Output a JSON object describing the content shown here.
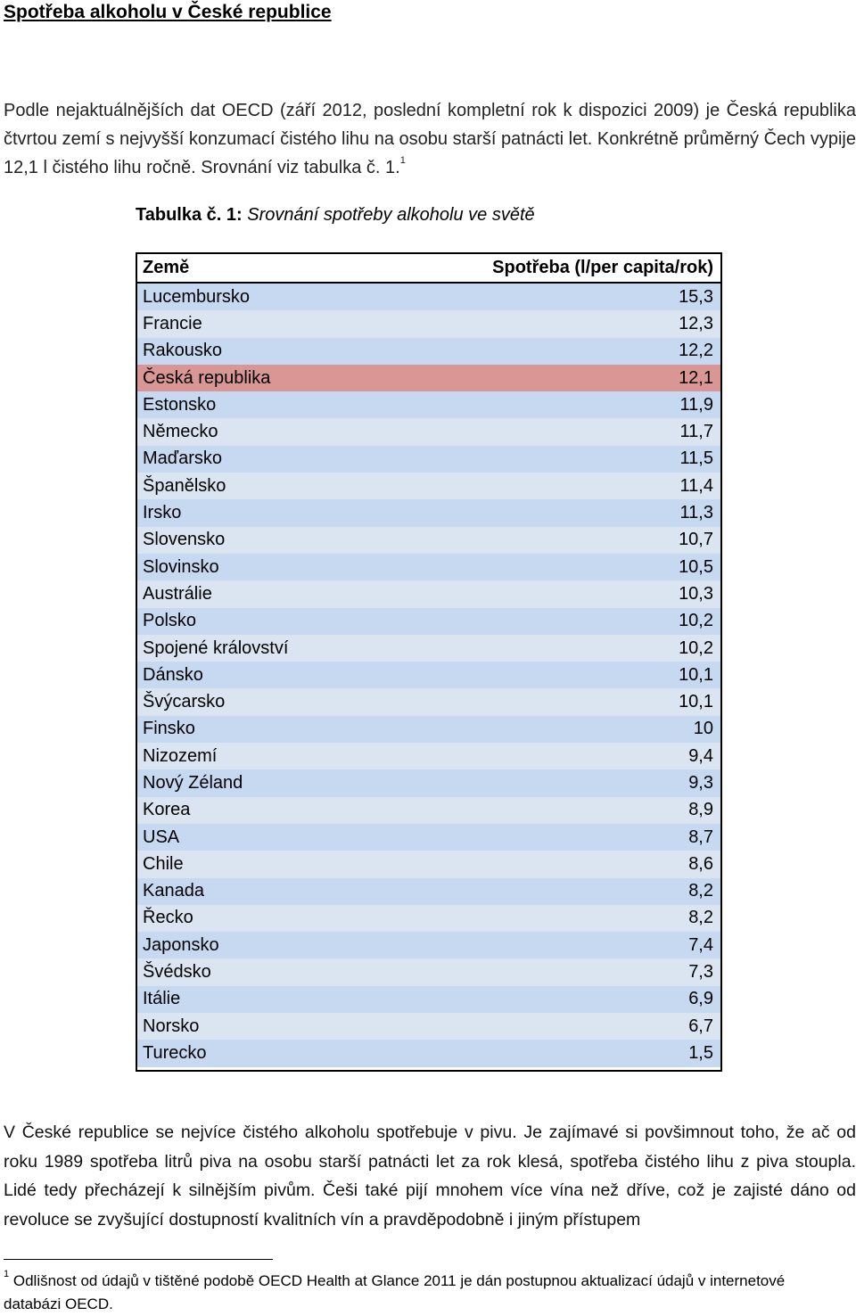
{
  "heading": "Spotřeba alkoholu v České republice",
  "intro": {
    "text": "Podle nejaktuálnějších dat OECD (září 2012, poslední kompletní rok k dispozici 2009) je Česká republika čtvrtou zemí s nejvyšší konzumací čistého lihu na osobu starší patnácti let. Konkrétně průměrný Čech vypije 12,1 l čistého lihu ročně. Srovnání viz tabulka č. 1.",
    "footnote_ref": "1"
  },
  "caption": {
    "label": "Tabulka č. 1:",
    "text": "Srovnání spotřeby alkoholu ve světě"
  },
  "table": {
    "col_country": "Země",
    "col_value": "Spotřeba (l/per capita/rok)",
    "rows": [
      {
        "country": "Lucembursko",
        "value": "15,3"
      },
      {
        "country": "Francie",
        "value": "12,3"
      },
      {
        "country": "Rakousko",
        "value": "12,2"
      },
      {
        "country": "Česká republika",
        "value": "12,1"
      },
      {
        "country": "Estonsko",
        "value": "11,9"
      },
      {
        "country": "Německo",
        "value": "11,7"
      },
      {
        "country": "Maďarsko",
        "value": "11,5"
      },
      {
        "country": "Španělsko",
        "value": "11,4"
      },
      {
        "country": "Irsko",
        "value": "11,3"
      },
      {
        "country": "Slovensko",
        "value": "10,7"
      },
      {
        "country": "Slovinsko",
        "value": "10,5"
      },
      {
        "country": "Austrálie",
        "value": "10,3"
      },
      {
        "country": "Polsko",
        "value": "10,2"
      },
      {
        "country": "Spojené království",
        "value": "10,2"
      },
      {
        "country": "Dánsko",
        "value": "10,1"
      },
      {
        "country": "Švýcarsko",
        "value": "10,1"
      },
      {
        "country": "Finsko",
        "value": "10"
      },
      {
        "country": "Nizozemí",
        "value": "9,4"
      },
      {
        "country": "Nový Zéland",
        "value": "9,3"
      },
      {
        "country": "Korea",
        "value": "8,9"
      },
      {
        "country": "USA",
        "value": "8,7"
      },
      {
        "country": "Chile",
        "value": "8,6"
      },
      {
        "country": "Kanada",
        "value": "8,2"
      },
      {
        "country": "Řecko",
        "value": "8,2"
      },
      {
        "country": "Japonsko",
        "value": "7,4"
      },
      {
        "country": "Švédsko",
        "value": "7,3"
      },
      {
        "country": "Itálie",
        "value": "6,9"
      },
      {
        "country": "Norsko",
        "value": "6,7"
      },
      {
        "country": "Turecko",
        "value": "1,5"
      }
    ],
    "highlight_country": "Česká republika",
    "colors": {
      "row_a": "#c6d9f1",
      "row_b": "#dbe5f1",
      "highlight": "#d99694"
    }
  },
  "body_text": "V České republice se nejvíce čistého alkoholu spotřebuje v pivu. Je zajímavé si povšimnout toho, že ač od roku 1989 spotřeba litrů piva na osobu starší patnácti let za rok klesá, spotřeba čistého lihu z piva stoupla. Lidé tedy přecházejí k silnějším pivům. Češi také pijí mnohem více vína než dříve, což je zajisté dáno od revoluce se zvyšující dostupností kvalitních vín a pravděpodobně i jiným přístupem",
  "footnote": {
    "number": "1",
    "text": "Odlišnost od údajů v tištěné podobě OECD Health at Glance 2011 je dán postupnou aktualizací údajů v internetové databázi OECD."
  }
}
